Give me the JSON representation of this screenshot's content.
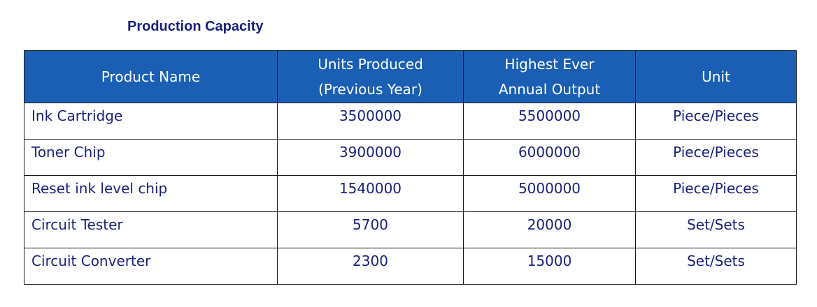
{
  "title": "Production Capacity",
  "table": {
    "headers": {
      "product_name": "Product Name",
      "units_produced_line1": "Units Produced",
      "units_produced_line2": "(Previous Year)",
      "highest_line1": "Highest Ever",
      "highest_line2": "Annual Output",
      "unit": "Unit"
    },
    "rows": [
      {
        "name": "Ink Cartridge",
        "produced": "3500000",
        "highest": "5500000",
        "unit": "Piece/Pieces"
      },
      {
        "name": "Toner Chip",
        "produced": "3900000",
        "highest": "6000000",
        "unit": "Piece/Pieces"
      },
      {
        "name": "Reset ink level chip",
        "produced": "1540000",
        "highest": "5000000",
        "unit": "Piece/Pieces"
      },
      {
        "name": "Circuit Tester",
        "produced": "5700",
        "highest": "20000",
        "unit": "Set/Sets"
      },
      {
        "name": "Circuit Converter",
        "produced": "2300",
        "highest": "15000",
        "unit": "Set/Sets"
      }
    ]
  }
}
